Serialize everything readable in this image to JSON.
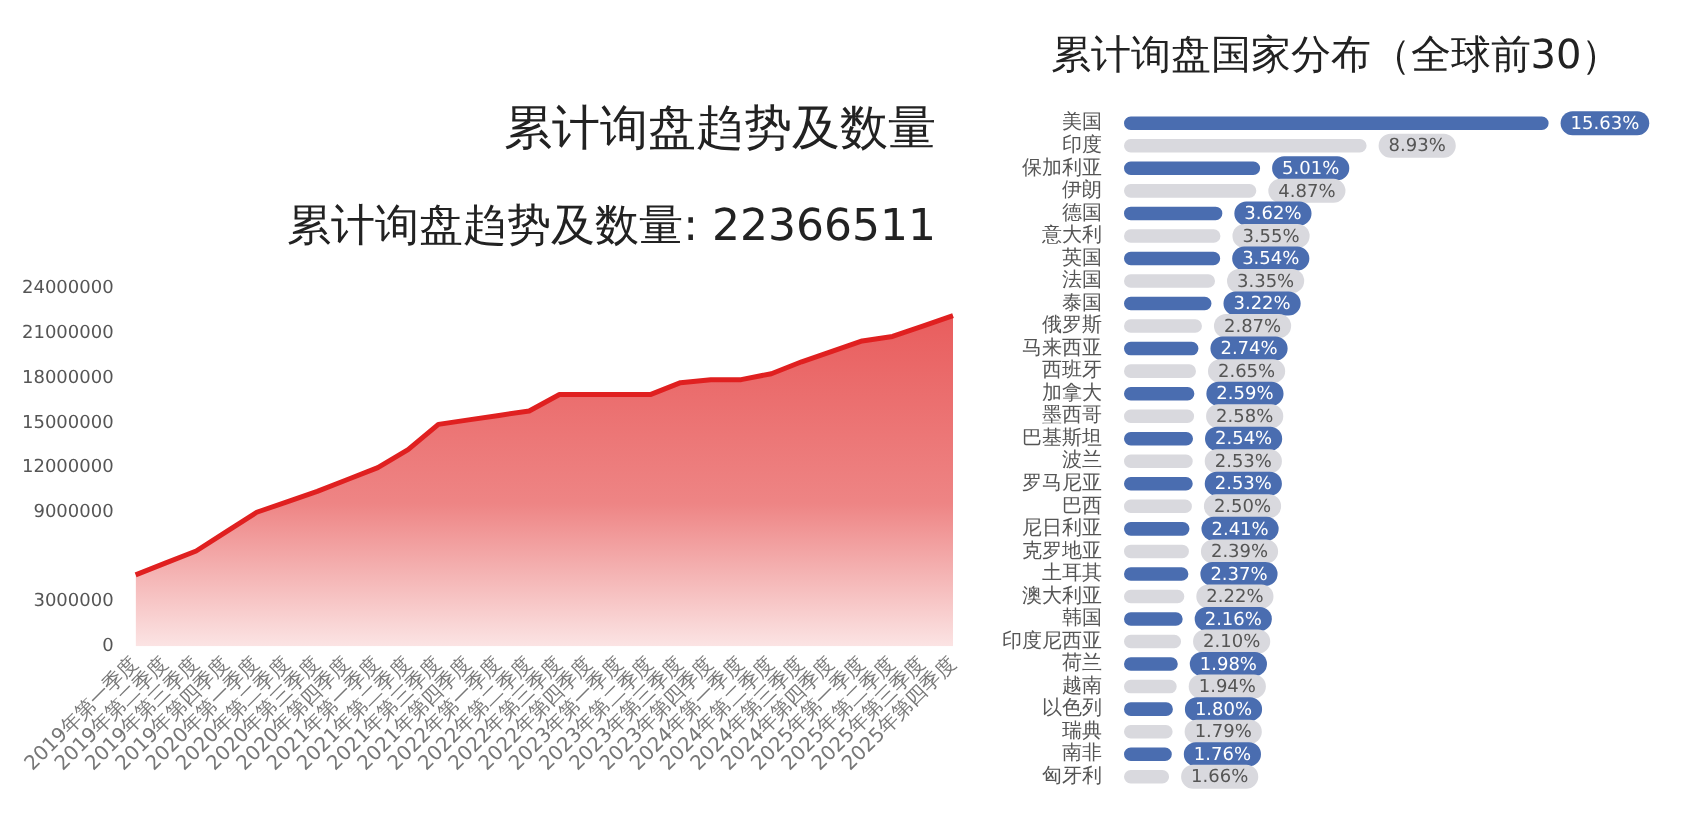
{
  "chart_data": [
    {
      "type": "area",
      "title": "累计询盘趋势及数量",
      "subtitle": "累计询盘趋势及数量: 22366511",
      "categories": [
        "2019年第一季度",
        "2019年第二季度",
        "2019年第三季度",
        "2019年第四季度",
        "2020年第一季度",
        "2020年第二季度",
        "2020年第三季度",
        "2020年第四季度",
        "2021年第一季度",
        "2021年第二季度",
        "2021年第三季度",
        "2021年第四季度",
        "2022年第一季度",
        "2022年第二季度",
        "2022年第三季度",
        "2022年第四季度",
        "2023年第一季度",
        "2023年第二季度",
        "2023年第三季度",
        "2023年第四季度",
        "2024年第一季度",
        "2024年第二季度",
        "2024年第三季度",
        "2024年第四季度",
        "2025年第一季度",
        "2025年第二季度",
        "2025年第三季度",
        "2025年第四季度"
      ],
      "series": [
        {
          "color": "#e02020",
          "values": [
            4800000,
            5600000,
            6400000,
            7700000,
            9000000,
            9700000,
            10400000,
            11200000,
            12000000,
            13200000,
            14900000,
            15200000,
            15500000,
            15800000,
            16900000,
            16900000,
            16900000,
            16900000,
            17700000,
            17900000,
            17900000,
            18300000,
            19100000,
            19800000,
            20500000,
            20800000,
            21500000,
            22200000
          ]
        }
      ],
      "ylim": [
        0,
        24000000
      ],
      "yticks": [
        0,
        3000000,
        9000000,
        12000000,
        15000000,
        18000000,
        21000000,
        24000000
      ],
      "grid": false,
      "legend": false
    },
    {
      "type": "bar",
      "orientation": "horizontal",
      "title": "累计询盘国家分布（全球前30）",
      "tick_labels": "y",
      "legend": false,
      "grid": false,
      "categories": [
        "美国",
        "印度",
        "保加利亚",
        "伊朗",
        "德国",
        "意大利",
        "英国",
        "法国",
        "泰国",
        "俄罗斯",
        "马来西亚",
        "西班牙",
        "加拿大",
        "墨西哥",
        "巴基斯坦",
        "波兰",
        "罗马尼亚",
        "巴西",
        "尼日利亚",
        "克罗地亚",
        "土耳其",
        "澳大利亚",
        "韩国",
        "印度尼西亚",
        "荷兰",
        "越南",
        "以色列",
        "瑞典",
        "南非",
        "匈牙利"
      ],
      "values": [
        15.63,
        8.93,
        5.01,
        4.87,
        3.62,
        3.55,
        3.54,
        3.35,
        3.22,
        2.87,
        2.74,
        2.65,
        2.59,
        2.58,
        2.54,
        2.53,
        2.53,
        2.5,
        2.41,
        2.39,
        2.37,
        2.22,
        2.16,
        2.1,
        1.98,
        1.94,
        1.8,
        1.79,
        1.76,
        1.66
      ],
      "value_labels": [
        "15.63%",
        "8.93%",
        "5.01%",
        "4.87%",
        "3.62%",
        "3.55%",
        "3.54%",
        "3.35%",
        "3.22%",
        "2.87%",
        "2.74%",
        "2.65%",
        "2.59%",
        "2.58%",
        "2.54%",
        "2.53%",
        "2.53%",
        "2.50%",
        "2.41%",
        "2.39%",
        "2.37%",
        "2.22%",
        "2.16%",
        "2.10%",
        "1.98%",
        "1.94%",
        "1.80%",
        "1.79%",
        "1.76%",
        "1.66%"
      ],
      "colors": [
        "#4a6db0",
        "#d9d9de",
        "#4a6db0",
        "#d9d9de",
        "#4a6db0",
        "#d9d9de",
        "#4a6db0",
        "#d9d9de",
        "#4a6db0",
        "#d9d9de",
        "#4a6db0",
        "#d9d9de",
        "#4a6db0",
        "#d9d9de",
        "#4a6db0",
        "#d9d9de",
        "#4a6db0",
        "#d9d9de",
        "#4a6db0",
        "#d9d9de",
        "#4a6db0",
        "#d9d9de",
        "#4a6db0",
        "#d9d9de",
        "#4a6db0",
        "#d9d9de",
        "#4a6db0",
        "#d9d9de",
        "#4a6db0",
        "#d9d9de"
      ]
    }
  ]
}
